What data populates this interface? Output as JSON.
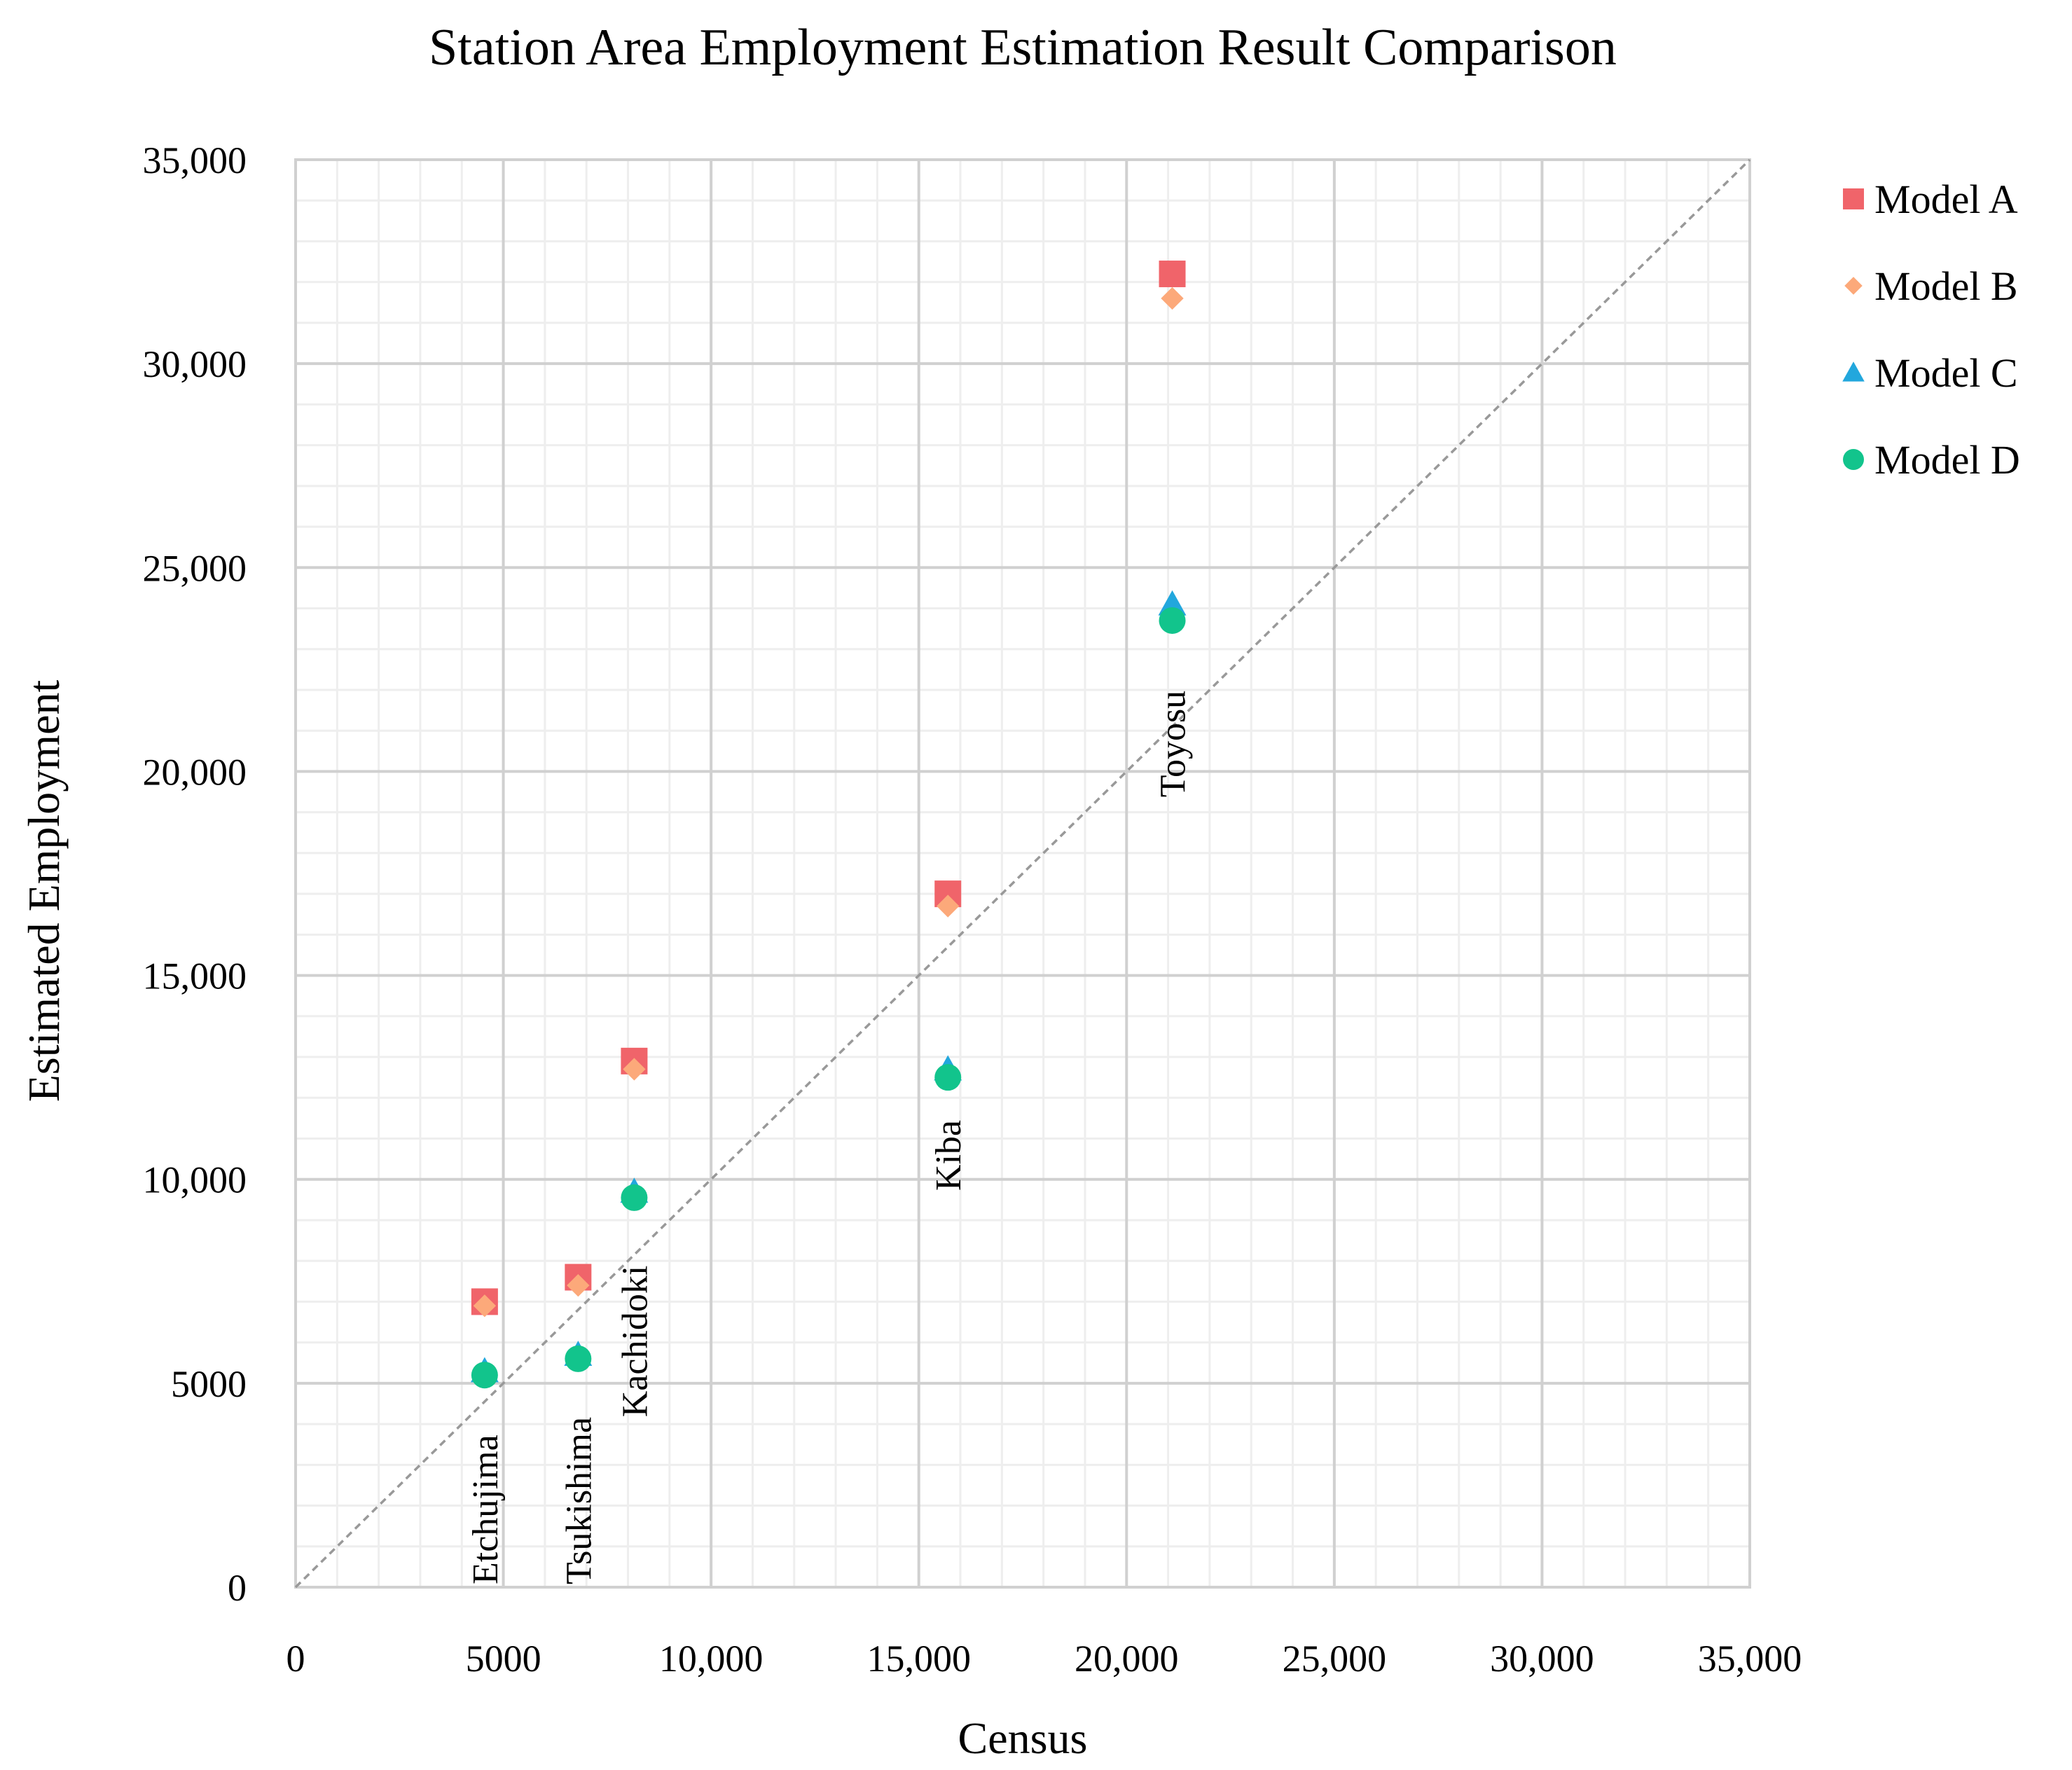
{
  "chart_data": {
    "type": "scatter",
    "title": "Station Area Employment Estimation Result Comparison",
    "xlabel": "Census",
    "ylabel": "Estimated Employment",
    "xlim": [
      0,
      35000
    ],
    "ylim": [
      0,
      35000
    ],
    "x_ticks": [
      {
        "value": 0,
        "label": "0"
      },
      {
        "value": 5000,
        "label": "5000"
      },
      {
        "value": 10000,
        "label": "10,000"
      },
      {
        "value": 15000,
        "label": "15,000"
      },
      {
        "value": 20000,
        "label": "20,000"
      },
      {
        "value": 25000,
        "label": "25,000"
      },
      {
        "value": 30000,
        "label": "30,000"
      },
      {
        "value": 35000,
        "label": "35,000"
      }
    ],
    "y_ticks": [
      {
        "value": 0,
        "label": "0"
      },
      {
        "value": 5000,
        "label": "5000"
      },
      {
        "value": 10000,
        "label": "10,000"
      },
      {
        "value": 15000,
        "label": "15,000"
      },
      {
        "value": 20000,
        "label": "20,000"
      },
      {
        "value": 25000,
        "label": "25,000"
      },
      {
        "value": 30000,
        "label": "30,000"
      },
      {
        "value": 35000,
        "label": "35,000"
      }
    ],
    "grid": {
      "major": true,
      "minor": true,
      "major_step": 5000,
      "minor_step": 1000
    },
    "reference_line": {
      "type": "y = x",
      "style": "dashed",
      "color": "#999999"
    },
    "legend_position": "right",
    "series": [
      {
        "name": "Model A",
        "marker": "square",
        "color": "#f0646a",
        "x": [
          4550,
          6800,
          8150,
          15700,
          21100
        ],
        "y": [
          7000,
          7600,
          12900,
          17000,
          32200
        ]
      },
      {
        "name": "Model B",
        "marker": "diamond",
        "color": "#fca97a",
        "x": [
          4550,
          6800,
          8150,
          15700,
          21100
        ],
        "y": [
          6900,
          7400,
          12700,
          16700,
          31600
        ]
      },
      {
        "name": "Model C",
        "marker": "triangle",
        "color": "#22a7dd",
        "x": [
          4550,
          6800,
          8150,
          15700,
          21100
        ],
        "y": [
          5300,
          5700,
          9700,
          12700,
          24100
        ]
      },
      {
        "name": "Model D",
        "marker": "circle",
        "color": "#12c48c",
        "x": [
          4550,
          6800,
          8150,
          15700,
          21100
        ],
        "y": [
          5200,
          5600,
          9550,
          12500,
          23700
        ]
      }
    ],
    "point_labels": [
      {
        "text": "Etchujima",
        "x": 4550,
        "y": 0
      },
      {
        "text": "Tsukishima",
        "x": 6800,
        "y": 0
      },
      {
        "text": "Kachidoki",
        "x": 8150,
        "y": 4100
      },
      {
        "text": "Kiba",
        "x": 15700,
        "y": 9650
      },
      {
        "text": "Toyosu",
        "x": 21100,
        "y": 19300
      }
    ]
  }
}
